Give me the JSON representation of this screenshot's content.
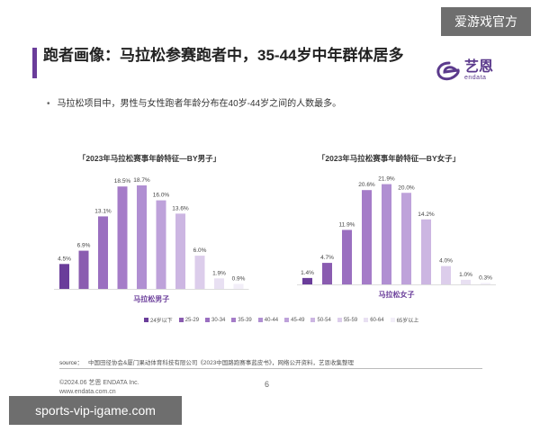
{
  "header": {
    "title": "跑者画像：马拉松参赛跑者中，35-44岁中年群体居多",
    "logo_cn": "艺恩",
    "logo_en": "endata"
  },
  "bullet": "马拉松项目中，男性与女性跑者年龄分布在40岁-44岁之间的人数最多。",
  "chart_data": [
    {
      "type": "bar",
      "title": "「2023年马拉松赛事年龄特征—BY男子」",
      "xlabel": "马拉松男子",
      "categories": [
        "24岁以下",
        "25-29",
        "30-34",
        "35-39",
        "40-44",
        "45-49",
        "50-54",
        "55-59",
        "60-64",
        "65岁以上"
      ],
      "values": [
        4.5,
        6.9,
        13.1,
        18.5,
        18.7,
        16.0,
        13.6,
        6.0,
        1.9,
        0.9
      ],
      "labels": [
        "4.5%",
        "6.9%",
        "13.1%",
        "18.5%",
        "18.7%",
        "16.0%",
        "13.6%",
        "6.0%",
        "1.9%",
        "0.9%"
      ],
      "ylim": [
        0,
        20
      ],
      "grid": false
    },
    {
      "type": "bar",
      "title": "「2023年马拉松赛事年龄特征—BY女子」",
      "xlabel": "马拉松女子",
      "categories": [
        "24岁以下",
        "25-29",
        "30-34",
        "35-39",
        "40-44",
        "45-49",
        "50-54",
        "55-59",
        "60-64",
        "65岁以上"
      ],
      "values": [
        1.4,
        4.7,
        11.9,
        20.6,
        21.9,
        20.0,
        14.2,
        4.0,
        1.0,
        0.3
      ],
      "labels": [
        "1.4%",
        "4.7%",
        "11.9%",
        "20.6%",
        "21.9%",
        "20.0%",
        "14.2%",
        "4.0%",
        "1.0%",
        "0.3%"
      ],
      "ylim": [
        0,
        23
      ],
      "grid": false
    }
  ],
  "legend": {
    "placement": "bottom-center",
    "items": [
      "24岁以下",
      "25-29",
      "30-34",
      "35-39",
      "40-44",
      "45-49",
      "50-54",
      "55-59",
      "60-64",
      "65岁以上"
    ],
    "colors": [
      "#6a3d9a",
      "#8a5cb0",
      "#9a6fc0",
      "#a57cc8",
      "#b08fd2",
      "#bea2da",
      "#ccb6e2",
      "#dccdeb",
      "#e8e0f2",
      "#f2eef8"
    ]
  },
  "source": {
    "label": "source：",
    "text": "中国田径协会&厦门果动体育科技有限公司《2023中国路跑赛事蓝皮书》，网络公开资料，艺恩收集整理"
  },
  "footer": {
    "copyright": "©2024.06  艺恩 ENDATA Inc.",
    "url": "www.endata.com.cn",
    "page": "6"
  },
  "watermarks": {
    "top": "爱游戏官方",
    "bottom": "sports-vip-igame.com"
  }
}
